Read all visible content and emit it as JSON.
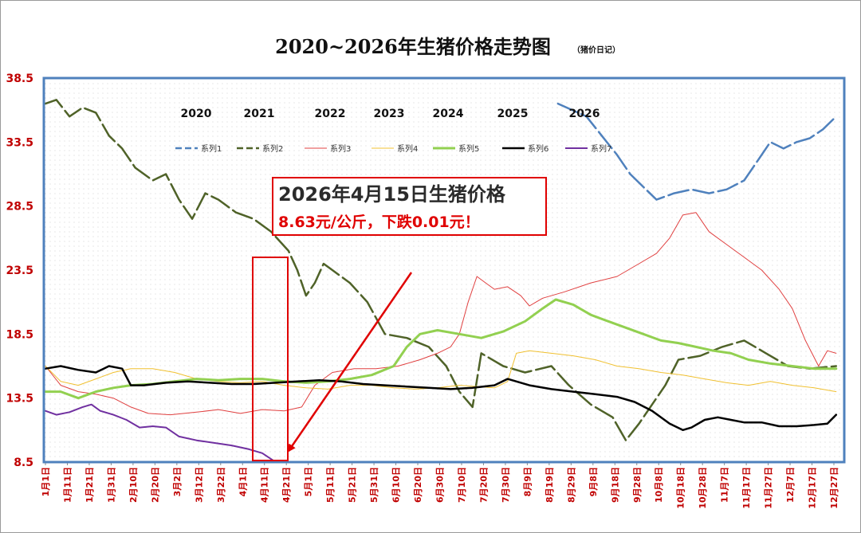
{
  "chart_data": {
    "type": "line",
    "title": "2020~2026年生猪价格走势图",
    "subtitle": "（猪价日记）",
    "ylim": [
      8.5,
      38.5
    ],
    "y_ticks": [
      "8.5",
      "13.5",
      "18.5",
      "23.5",
      "28.5",
      "33.5",
      "38.5"
    ],
    "x_ticks": [
      "1月1日",
      "1月11日",
      "1月21日",
      "1月31日",
      "2月10日",
      "2月20日",
      "3月2日",
      "3月12日",
      "3月22日",
      "4月1日",
      "4月11日",
      "4月21日",
      "5月1日",
      "5月11日",
      "5月21日",
      "5月31日",
      "6月10日",
      "6月20日",
      "6月30日",
      "7月10日",
      "7月20日",
      "7月30日",
      "8月9日",
      "8月19日",
      "8月29日",
      "9月8日",
      "9月18日",
      "9月28日",
      "10月8日",
      "10月18日",
      "10月28日",
      "11月7日",
      "11月17日",
      "11月27日",
      "12月7日",
      "12月17日",
      "12月27日"
    ],
    "year_labels": [
      "2020",
      "2021",
      "2022",
      "2023",
      "2024",
      "2025",
      "2026"
    ],
    "series": [
      {
        "name": "系列1",
        "year": "2020",
        "color": "#4f81bd",
        "dash": true,
        "width": 2.5,
        "points": [
          [
            235,
            36.5
          ],
          [
            248,
            35.5
          ],
          [
            255,
            34
          ],
          [
            262,
            32.5
          ],
          [
            268,
            31
          ],
          [
            274,
            30
          ],
          [
            280,
            29
          ],
          [
            288,
            29.5
          ],
          [
            296,
            29.8
          ],
          [
            304,
            29.5
          ],
          [
            312,
            29.8
          ],
          [
            320,
            30.5
          ],
          [
            326,
            32
          ],
          [
            332,
            33.5
          ],
          [
            338,
            33
          ],
          [
            344,
            33.5
          ],
          [
            350,
            33.8
          ],
          [
            356,
            34.5
          ],
          [
            362,
            35.5
          ]
        ]
      },
      {
        "name": "系列2",
        "year": "2021",
        "color": "#4f6228",
        "dash": true,
        "width": 2.5,
        "points": [
          [
            1,
            36.5
          ],
          [
            6,
            36.8
          ],
          [
            12,
            35.5
          ],
          [
            18,
            36.2
          ],
          [
            24,
            35.8
          ],
          [
            30,
            34
          ],
          [
            36,
            33
          ],
          [
            42,
            31.5
          ],
          [
            50,
            30.5
          ],
          [
            56,
            31
          ],
          [
            62,
            29
          ],
          [
            68,
            27.5
          ],
          [
            74,
            29.5
          ],
          [
            80,
            29
          ],
          [
            88,
            28
          ],
          [
            96,
            27.5
          ],
          [
            104,
            26.5
          ],
          [
            112,
            25
          ],
          [
            116,
            23.5
          ],
          [
            120,
            21.5
          ],
          [
            124,
            22.5
          ],
          [
            128,
            24
          ],
          [
            132,
            23.5
          ],
          [
            140,
            22.5
          ],
          [
            148,
            21
          ],
          [
            156,
            18.5
          ],
          [
            166,
            18.2
          ],
          [
            176,
            17.5
          ],
          [
            184,
            16
          ],
          [
            190,
            14
          ],
          [
            196,
            12.8
          ],
          [
            200,
            17
          ],
          [
            210,
            16
          ],
          [
            220,
            15.5
          ],
          [
            232,
            16
          ],
          [
            240,
            14.5
          ],
          [
            250,
            13
          ],
          [
            260,
            12
          ],
          [
            266,
            10.2
          ],
          [
            272,
            11.5
          ],
          [
            278,
            13
          ],
          [
            284,
            14.5
          ],
          [
            290,
            16.5
          ],
          [
            300,
            16.8
          ],
          [
            310,
            17.5
          ],
          [
            320,
            18
          ],
          [
            330,
            17
          ],
          [
            340,
            16
          ],
          [
            350,
            15.8
          ],
          [
            362,
            16
          ]
        ]
      },
      {
        "name": "系列3",
        "year": "2022",
        "color": "#e04040",
        "dash": false,
        "width": 1,
        "points": [
          [
            1,
            16
          ],
          [
            8,
            14.5
          ],
          [
            16,
            14
          ],
          [
            24,
            13.8
          ],
          [
            32,
            13.5
          ],
          [
            40,
            12.8
          ],
          [
            48,
            12.3
          ],
          [
            58,
            12.2
          ],
          [
            70,
            12.4
          ],
          [
            80,
            12.6
          ],
          [
            90,
            12.3
          ],
          [
            100,
            12.6
          ],
          [
            110,
            12.5
          ],
          [
            118,
            12.8
          ],
          [
            124,
            14.5
          ],
          [
            132,
            15.5
          ],
          [
            142,
            15.8
          ],
          [
            152,
            15.8
          ],
          [
            162,
            16
          ],
          [
            172,
            16.5
          ],
          [
            180,
            17
          ],
          [
            186,
            17.5
          ],
          [
            190,
            18.5
          ],
          [
            194,
            21
          ],
          [
            198,
            23
          ],
          [
            202,
            22.5
          ],
          [
            206,
            22
          ],
          [
            212,
            22.2
          ],
          [
            218,
            21.5
          ],
          [
            222,
            20.7
          ],
          [
            228,
            21.3
          ],
          [
            238,
            21.8
          ],
          [
            250,
            22.5
          ],
          [
            262,
            23
          ],
          [
            272,
            24
          ],
          [
            280,
            24.8
          ],
          [
            286,
            26
          ],
          [
            292,
            27.8
          ],
          [
            298,
            28
          ],
          [
            304,
            26.5
          ],
          [
            312,
            25.5
          ],
          [
            320,
            24.5
          ],
          [
            328,
            23.5
          ],
          [
            336,
            22
          ],
          [
            342,
            20.5
          ],
          [
            348,
            18
          ],
          [
            354,
            16
          ],
          [
            358,
            17.2
          ],
          [
            362,
            17
          ]
        ]
      },
      {
        "name": "系列4",
        "year": "2023",
        "color": "#f0c030",
        "dash": false,
        "width": 1,
        "points": [
          [
            1,
            16
          ],
          [
            8,
            14.8
          ],
          [
            16,
            14.5
          ],
          [
            24,
            15
          ],
          [
            32,
            15.5
          ],
          [
            40,
            15.8
          ],
          [
            50,
            15.8
          ],
          [
            60,
            15.5
          ],
          [
            70,
            15
          ],
          [
            80,
            14.8
          ],
          [
            90,
            14.7
          ],
          [
            100,
            14.8
          ],
          [
            110,
            14.5
          ],
          [
            120,
            14.3
          ],
          [
            130,
            14.2
          ],
          [
            140,
            14.5
          ],
          [
            150,
            14.5
          ],
          [
            160,
            14.3
          ],
          [
            170,
            14.2
          ],
          [
            180,
            14.3
          ],
          [
            190,
            14.5
          ],
          [
            198,
            14.4
          ],
          [
            206,
            14.3
          ],
          [
            212,
            14.8
          ],
          [
            216,
            17
          ],
          [
            222,
            17.2
          ],
          [
            232,
            17
          ],
          [
            242,
            16.8
          ],
          [
            252,
            16.5
          ],
          [
            262,
            16
          ],
          [
            272,
            15.8
          ],
          [
            282,
            15.5
          ],
          [
            292,
            15.3
          ],
          [
            302,
            15
          ],
          [
            312,
            14.7
          ],
          [
            322,
            14.5
          ],
          [
            332,
            14.8
          ],
          [
            342,
            14.5
          ],
          [
            352,
            14.3
          ],
          [
            362,
            14
          ]
        ]
      },
      {
        "name": "系列5",
        "year": "2024",
        "color": "#92d050",
        "dash": false,
        "width": 3,
        "points": [
          [
            1,
            14
          ],
          [
            8,
            14
          ],
          [
            16,
            13.5
          ],
          [
            24,
            14
          ],
          [
            32,
            14.3
          ],
          [
            40,
            14.5
          ],
          [
            50,
            14.6
          ],
          [
            60,
            14.8
          ],
          [
            70,
            15
          ],
          [
            80,
            14.9
          ],
          [
            90,
            15
          ],
          [
            100,
            15
          ],
          [
            110,
            14.8
          ],
          [
            120,
            14.7
          ],
          [
            130,
            14.8
          ],
          [
            140,
            15
          ],
          [
            150,
            15.3
          ],
          [
            160,
            16
          ],
          [
            166,
            17.5
          ],
          [
            172,
            18.5
          ],
          [
            180,
            18.8
          ],
          [
            190,
            18.5
          ],
          [
            200,
            18.2
          ],
          [
            210,
            18.7
          ],
          [
            220,
            19.5
          ],
          [
            228,
            20.5
          ],
          [
            234,
            21.2
          ],
          [
            242,
            20.8
          ],
          [
            250,
            20
          ],
          [
            258,
            19.5
          ],
          [
            266,
            19
          ],
          [
            274,
            18.5
          ],
          [
            282,
            18
          ],
          [
            290,
            17.8
          ],
          [
            298,
            17.5
          ],
          [
            306,
            17.2
          ],
          [
            314,
            17
          ],
          [
            322,
            16.5
          ],
          [
            332,
            16.2
          ],
          [
            342,
            16
          ],
          [
            352,
            15.8
          ],
          [
            362,
            15.8
          ]
        ]
      },
      {
        "name": "系列6",
        "year": "2025",
        "color": "#000000",
        "dash": false,
        "width": 2.5,
        "points": [
          [
            1,
            15.8
          ],
          [
            8,
            16
          ],
          [
            16,
            15.7
          ],
          [
            24,
            15.5
          ],
          [
            30,
            16
          ],
          [
            36,
            15.8
          ],
          [
            40,
            14.5
          ],
          [
            46,
            14.5
          ],
          [
            56,
            14.7
          ],
          [
            66,
            14.8
          ],
          [
            76,
            14.7
          ],
          [
            86,
            14.6
          ],
          [
            96,
            14.6
          ],
          [
            106,
            14.7
          ],
          [
            116,
            14.8
          ],
          [
            126,
            14.9
          ],
          [
            136,
            14.8
          ],
          [
            146,
            14.6
          ],
          [
            156,
            14.5
          ],
          [
            166,
            14.4
          ],
          [
            176,
            14.3
          ],
          [
            186,
            14.2
          ],
          [
            196,
            14.3
          ],
          [
            206,
            14.5
          ],
          [
            212,
            15
          ],
          [
            222,
            14.5
          ],
          [
            232,
            14.2
          ],
          [
            242,
            14
          ],
          [
            252,
            13.8
          ],
          [
            262,
            13.6
          ],
          [
            270,
            13.2
          ],
          [
            278,
            12.5
          ],
          [
            286,
            11.5
          ],
          [
            292,
            11
          ],
          [
            296,
            11.2
          ],
          [
            302,
            11.8
          ],
          [
            308,
            12
          ],
          [
            314,
            11.8
          ],
          [
            320,
            11.6
          ],
          [
            328,
            11.6
          ],
          [
            336,
            11.3
          ],
          [
            344,
            11.3
          ],
          [
            352,
            11.4
          ],
          [
            358,
            11.5
          ],
          [
            362,
            12.2
          ]
        ]
      },
      {
        "name": "系列7",
        "year": "2026",
        "color": "#7030a0",
        "dash": false,
        "width": 2,
        "points": [
          [
            1,
            12.5
          ],
          [
            6,
            12.2
          ],
          [
            12,
            12.4
          ],
          [
            18,
            12.8
          ],
          [
            22,
            13
          ],
          [
            26,
            12.5
          ],
          [
            32,
            12.2
          ],
          [
            38,
            11.8
          ],
          [
            44,
            11.2
          ],
          [
            50,
            11.3
          ],
          [
            56,
            11.2
          ],
          [
            62,
            10.5
          ],
          [
            70,
            10.2
          ],
          [
            78,
            10
          ],
          [
            86,
            9.8
          ],
          [
            94,
            9.5
          ],
          [
            100,
            9.2
          ],
          [
            105,
            8.63
          ]
        ]
      }
    ],
    "annotation": {
      "headline": "2026年4月15日生猪价格",
      "detail": "8.63元/公斤，下跌0.01元！"
    }
  },
  "colors": {
    "plot_border": "#4f81bd",
    "tick_red": "#c00000",
    "annotation_red": "#e00000"
  }
}
